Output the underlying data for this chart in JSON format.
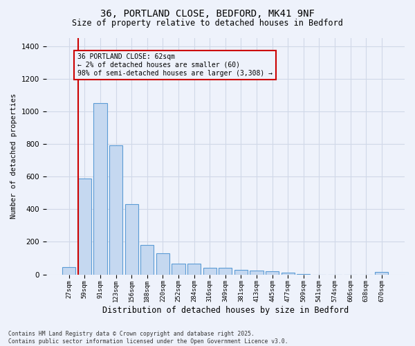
{
  "title_line1": "36, PORTLAND CLOSE, BEDFORD, MK41 9NF",
  "title_line2": "Size of property relative to detached houses in Bedford",
  "xlabel": "Distribution of detached houses by size in Bedford",
  "ylabel": "Number of detached properties",
  "annotation_title": "36 PORTLAND CLOSE: 62sqm",
  "annotation_line2": "← 2% of detached houses are smaller (60)",
  "annotation_line3": "98% of semi-detached houses are larger (3,308) →",
  "footer_line1": "Contains HM Land Registry data © Crown copyright and database right 2025.",
  "footer_line2": "Contains public sector information licensed under the Open Government Licence v3.0.",
  "bar_color": "#c5d8f0",
  "bar_edge_color": "#5b9bd5",
  "highlight_line_color": "#cc0000",
  "background_color": "#eef2fb",
  "grid_color": "#d0d8e8",
  "categories": [
    "27sqm",
    "59sqm",
    "91sqm",
    "123sqm",
    "156sqm",
    "188sqm",
    "220sqm",
    "252sqm",
    "284sqm",
    "316sqm",
    "349sqm",
    "381sqm",
    "413sqm",
    "445sqm",
    "477sqm",
    "509sqm",
    "541sqm",
    "574sqm",
    "606sqm",
    "638sqm",
    "670sqm"
  ],
  "values": [
    45,
    590,
    1050,
    790,
    430,
    180,
    130,
    68,
    68,
    42,
    42,
    28,
    25,
    20,
    12,
    4,
    0,
    0,
    0,
    0,
    13
  ],
  "ylim": [
    0,
    1450
  ],
  "yticks": [
    0,
    200,
    400,
    600,
    800,
    1000,
    1200,
    1400
  ],
  "red_line_bar_index": 1
}
